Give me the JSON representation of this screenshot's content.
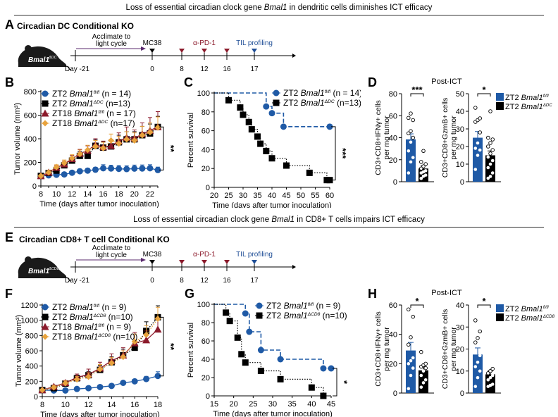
{
  "sections": [
    {
      "banner": {
        "pre": "Loss of essential circadian clock gene ",
        "gene": "Bmal1",
        "post": " in dendritic cells diminishes ICT efficacy"
      },
      "timeline": {
        "panel": "A",
        "title": "Circadian DC Conditional KO",
        "mouse_label": "Bmal1",
        "mouse_sup": "ΔDC",
        "acclimate": [
          "Acclimate to",
          "light cycle"
        ],
        "start_day": "Day -21",
        "events": [
          {
            "day": "0",
            "label": "MC38",
            "color": "#000000"
          },
          {
            "day": "8",
            "label": "",
            "color": "#8b1a2b"
          },
          {
            "day": "12",
            "label": "α-PD-1",
            "color": "#8b1a2b"
          },
          {
            "day": "16",
            "label": "",
            "color": "#8b1a2b"
          },
          {
            "day": "17",
            "label": "TIL profiling",
            "color": "#1f4e96"
          }
        ]
      }
    },
    {
      "banner": {
        "pre": "Loss of essential circadian clock gene ",
        "gene": "Bmal1",
        "post": " in CD8+ T cells impairs ICT efficacy"
      },
      "timeline": {
        "panel": "E",
        "title": "Circadian CD8+ T cell Conditional KO",
        "mouse_label": "Bmal1",
        "mouse_sup": "ΔCD8",
        "acclimate": [
          "Acclimate to",
          "light cycle"
        ],
        "start_day": "Day -21",
        "events": [
          {
            "day": "0",
            "label": "MC38",
            "color": "#000000"
          },
          {
            "day": "8",
            "label": "",
            "color": "#8b1a2b"
          },
          {
            "day": "12",
            "label": "α-PD-1",
            "color": "#8b1a2b"
          },
          {
            "day": "16",
            "label": "",
            "color": "#8b1a2b"
          },
          {
            "day": "17",
            "label": "TIL profiling",
            "color": "#1f4e96"
          }
        ]
      }
    }
  ],
  "colors": {
    "blue": "#1f5aa6",
    "black": "#000000",
    "red": "#8b1a2b",
    "orange": "#e8a33d"
  },
  "chart_data": [
    {
      "panel": "B",
      "type": "line",
      "xlabel": "Time (days after tumor inoculation)",
      "ylabel": "Tumor volume (mm³)",
      "xlim": [
        8,
        23
      ],
      "ylim": [
        0,
        800
      ],
      "xticks": [
        8,
        10,
        12,
        14,
        16,
        18,
        20,
        22
      ],
      "yticks": [
        0,
        200,
        400,
        600,
        800
      ],
      "significance": "**",
      "series": [
        {
          "name": "ZT2 Bmal1fl/fl (n = 14)",
          "prefix": "ZT2 ",
          "gene": "Bmal1",
          "sup": "fl/fl",
          "n": "(n = 14)",
          "marker": "circle",
          "color": "#1f5aa6",
          "dash": "solid",
          "x": [
            8,
            9,
            10,
            11,
            12,
            13,
            14,
            15,
            16,
            17,
            18,
            19,
            20,
            21,
            22,
            23
          ],
          "y": [
            85,
            90,
            95,
            98,
            112,
            125,
            130,
            138,
            150,
            148,
            145,
            143,
            147,
            148,
            150,
            135
          ],
          "err": [
            10,
            10,
            12,
            12,
            15,
            15,
            18,
            20,
            30,
            28,
            28,
            28,
            30,
            30,
            30,
            25
          ]
        },
        {
          "name": "ZT2 Bmal1ΔDC (n=13)",
          "prefix": "ZT2 ",
          "gene": "Bmal1",
          "sup": "ΔDC",
          "n": "(n=13)",
          "marker": "square",
          "color": "#000000",
          "dash": "dotted",
          "x": [
            8,
            9,
            10,
            11,
            12,
            13,
            14,
            15,
            16,
            17,
            18,
            19,
            20,
            21,
            22,
            23
          ],
          "y": [
            85,
            110,
            130,
            175,
            215,
            255,
            255,
            340,
            325,
            335,
            370,
            395,
            395,
            430,
            445,
            500
          ],
          "err": [
            10,
            15,
            20,
            25,
            30,
            35,
            40,
            50,
            50,
            55,
            60,
            65,
            65,
            75,
            80,
            90
          ]
        },
        {
          "name": "ZT18 Bmal1fl/fl (n = 17)",
          "prefix": "ZT18 ",
          "gene": "Bmal1",
          "sup": "fl/fl",
          "n": "(n = 17)",
          "marker": "triangle",
          "color": "#8b1a2b",
          "dash": "solid",
          "x": [
            8,
            9,
            10,
            11,
            12,
            13,
            14,
            15,
            16,
            17,
            18,
            19,
            20,
            21,
            22,
            23
          ],
          "y": [
            85,
            115,
            155,
            185,
            230,
            275,
            300,
            350,
            330,
            340,
            380,
            410,
            405,
            440,
            470,
            500
          ],
          "err": [
            10,
            15,
            20,
            25,
            30,
            35,
            40,
            50,
            50,
            55,
            70,
            90,
            70,
            95,
            110,
            130
          ]
        },
        {
          "name": "ZT18 Bmal1ΔDC (n=17)",
          "prefix": "ZT18 ",
          "gene": "Bmal1",
          "sup": "ΔDC",
          "n": "(n=17)",
          "marker": "diamond",
          "color": "#e8a33d",
          "dash": "dotted",
          "x": [
            8,
            9,
            10,
            11,
            12,
            13,
            14,
            15,
            16,
            17,
            18,
            19,
            20,
            21,
            22,
            23
          ],
          "y": [
            85,
            115,
            160,
            195,
            235,
            270,
            305,
            335,
            320,
            385,
            360,
            395,
            385,
            430,
            455,
            495
          ],
          "err": [
            10,
            15,
            20,
            25,
            30,
            35,
            40,
            50,
            50,
            55,
            60,
            65,
            65,
            75,
            80,
            90
          ]
        }
      ]
    },
    {
      "panel": "C",
      "type": "line",
      "subtype": "survival",
      "xlabel": "Time (days after tumor inoculation)",
      "ylabel": "Percent survival",
      "xlim": [
        20,
        60
      ],
      "ylim": [
        0,
        100
      ],
      "xticks": [
        20,
        25,
        30,
        35,
        40,
        45,
        50,
        55,
        60
      ],
      "yticks": [
        0,
        20,
        40,
        60,
        80,
        100
      ],
      "significance": "***",
      "series": [
        {
          "name": "ZT2 Bmal1fl/fl (n = 14)",
          "prefix": "ZT2 ",
          "gene": "Bmal1",
          "sup": "fl/fl",
          "n": "(n = 14)",
          "marker": "circle",
          "color": "#1f5aa6",
          "dash": "dashed",
          "x": [
            20,
            38,
            40,
            44,
            60
          ],
          "y": [
            100,
            85.7,
            78.6,
            64.3,
            64.3
          ]
        },
        {
          "name": "ZT2 Bmal1ΔDC (n=13)",
          "prefix": "ZT2 ",
          "gene": "Bmal1",
          "sup": "ΔDC",
          "n": "(n=13)",
          "marker": "square",
          "color": "#000000",
          "dash": "dotted",
          "x": [
            20,
            25,
            29,
            30,
            32,
            33,
            35,
            36,
            38,
            40,
            45,
            53,
            59,
            60
          ],
          "y": [
            100,
            92.3,
            84.6,
            76.9,
            69.2,
            61.5,
            53.8,
            46.2,
            38.5,
            30.8,
            23.1,
            15.4,
            7.7,
            7.7
          ]
        }
      ]
    },
    {
      "panel": "D",
      "type": "bar",
      "title": "Post-ICT",
      "legend": [
        {
          "prefix": "ZT2 ",
          "gene": "Bmal1",
          "sup": "fl/fl",
          "color": "#1f5aa6"
        },
        {
          "prefix": "ZT2 ",
          "gene": "Bmal1",
          "sup": "ΔDC",
          "color": "#000000"
        }
      ],
      "subplots": [
        {
          "ylabel": [
            "CD3+CD8+IFNγ+ cells",
            "per mg tumor"
          ],
          "ylim": [
            0,
            80
          ],
          "yticks": [
            0,
            20,
            40,
            60,
            80
          ],
          "significance": "***",
          "values": [
            38.5,
            12
          ],
          "err": [
            5,
            2.5
          ],
          "points": [
            [
              8,
              18,
              22,
              28,
              36,
              40,
              44,
              46,
              56,
              58,
              62
            ],
            [
              3,
              5,
              6,
              8,
              9,
              10,
              12,
              14,
              16,
              18,
              28
            ]
          ]
        },
        {
          "ylabel": [
            "CD3+CD8+GzmB+ cells",
            "per mg tumor"
          ],
          "ylim": [
            0,
            50
          ],
          "yticks": [
            0,
            10,
            20,
            30,
            40,
            50
          ],
          "significance": "*",
          "values": [
            25,
            15
          ],
          "err": [
            3.5,
            2.5
          ],
          "points": [
            [
              7,
              15,
              18,
              19,
              22,
              28,
              34,
              35,
              36,
              42
            ],
            [
              2,
              3,
              5,
              8,
              10,
              12,
              14,
              16,
              18,
              20,
              22,
              24,
              25,
              40
            ]
          ]
        }
      ]
    },
    {
      "panel": "F",
      "type": "line",
      "xlabel": "Time (days after tumor inoculation)",
      "ylabel": "Tumor volume (mm³)",
      "xlim": [
        8,
        18
      ],
      "ylim": [
        0,
        1200
      ],
      "xticks": [
        8,
        10,
        12,
        14,
        16,
        18
      ],
      "yticks": [
        0,
        200,
        400,
        600,
        800,
        1000,
        1200
      ],
      "significance": "**",
      "series": [
        {
          "name": "ZT2 Bmal1fl/fl (n = 9)",
          "prefix": "ZT2 ",
          "gene": "Bmal1",
          "sup": "fl/fl",
          "n": "(n = 9)",
          "marker": "circle",
          "color": "#1f5aa6",
          "dash": "solid",
          "x": [
            8,
            9,
            10,
            11,
            12,
            13,
            14,
            15,
            16,
            17,
            18
          ],
          "y": [
            85,
            80,
            80,
            100,
            110,
            125,
            140,
            180,
            200,
            230,
            270
          ],
          "err": [
            8,
            8,
            8,
            10,
            10,
            12,
            15,
            20,
            25,
            35,
            55
          ]
        },
        {
          "name": "ZT2 Bmal1ΔCD8 (n=10)",
          "prefix": "ZT2 ",
          "gene": "Bmal1",
          "sup": "ΔCD8",
          "n": "(n=10)",
          "marker": "square",
          "color": "#000000",
          "dash": "dotted",
          "x": [
            8,
            9,
            10,
            11,
            12,
            13,
            14,
            15,
            16,
            17,
            18
          ],
          "y": [
            85,
            110,
            170,
            240,
            280,
            350,
            450,
            540,
            640,
            860,
            1040
          ],
          "err": [
            10,
            20,
            30,
            40,
            50,
            60,
            70,
            80,
            100,
            120,
            150
          ]
        },
        {
          "name": "ZT18 Bmal1fl/fl (n = 9)",
          "prefix": "ZT18 ",
          "gene": "Bmal1",
          "sup": "fl/fl",
          "n": "(n = 9)",
          "marker": "triangle",
          "color": "#8b1a2b",
          "dash": "solid",
          "x": [
            8,
            9,
            10,
            11,
            12,
            13,
            14,
            15,
            16,
            17,
            18
          ],
          "y": [
            85,
            130,
            180,
            250,
            290,
            370,
            470,
            540,
            700,
            740,
            880
          ],
          "err": [
            10,
            20,
            30,
            45,
            70,
            80,
            90,
            100,
            140,
            120,
            130
          ]
        },
        {
          "name": "ZT18 Bmal1ΔCD8 (n=10)",
          "prefix": "ZT18 ",
          "gene": "Bmal1",
          "sup": "ΔCD8",
          "n": "(n=10)",
          "marker": "diamond",
          "color": "#e8a33d",
          "dash": "dotted",
          "x": [
            8,
            9,
            10,
            11,
            12,
            13,
            14,
            15,
            16,
            17,
            18
          ],
          "y": [
            85,
            120,
            175,
            225,
            260,
            360,
            440,
            520,
            720,
            810,
            1020
          ],
          "err": [
            10,
            20,
            30,
            40,
            50,
            60,
            70,
            80,
            100,
            120,
            150
          ]
        }
      ]
    },
    {
      "panel": "G",
      "type": "line",
      "subtype": "survival",
      "xlabel": "Time (days after tumor inoculation)",
      "ylabel": "Percent survival",
      "xlim": [
        15,
        45
      ],
      "ylim": [
        0,
        100
      ],
      "xticks": [
        15,
        20,
        25,
        30,
        35,
        40,
        45
      ],
      "yticks": [
        0,
        20,
        40,
        60,
        80,
        100
      ],
      "significance": "*",
      "series": [
        {
          "name": "ZT2 Bmal1fl/fl (n = 9)",
          "prefix": "ZT2 ",
          "gene": "Bmal1",
          "sup": "fl/fl",
          "n": "(n = 9)",
          "marker": "circle",
          "color": "#1f5aa6",
          "dash": "dashed",
          "x": [
            15,
            23,
            24,
            27,
            32,
            43,
            45
          ],
          "y": [
            100,
            90,
            70,
            50,
            40,
            30,
            30
          ]
        },
        {
          "name": "ZT2 Bmal1ΔCD8 (n=10)",
          "prefix": "ZT2 ",
          "gene": "Bmal1",
          "sup": "ΔCD8",
          "n": "(n=10)",
          "marker": "square",
          "color": "#000000",
          "dash": "dotted",
          "x": [
            15,
            18,
            19,
            21,
            22,
            23,
            27,
            32,
            40,
            43
          ],
          "y": [
            100,
            90.9,
            81.8,
            63.6,
            45.5,
            36.4,
            27.3,
            18.2,
            9.1,
            0
          ]
        }
      ]
    },
    {
      "panel": "H",
      "type": "bar",
      "title": "Post-ICT",
      "legend": [
        {
          "prefix": "ZT2 ",
          "gene": "Bmal1",
          "sup": "fl/fl",
          "color": "#1f5aa6"
        },
        {
          "prefix": "ZT2 ",
          "gene": "Bmal1",
          "sup": "ΔCD8",
          "color": "#000000"
        }
      ],
      "subplots": [
        {
          "ylabel": [
            "CD3+CD8+IFNγ+ cells",
            "per mg tumor"
          ],
          "ylim": [
            0,
            60
          ],
          "yticks": [
            0,
            20,
            40,
            60
          ],
          "significance": "*",
          "values": [
            29,
            15.5
          ],
          "err": [
            5.5,
            2.5
          ],
          "points": [
            [
              3,
              12,
              17,
              20,
              22,
              24,
              33,
              38,
              52,
              57
            ],
            [
              4,
              7,
              9,
              12,
              15,
              17,
              18,
              19,
              20,
              28
            ]
          ]
        },
        {
          "ylabel": [
            "CD3+CD8+GzmB+ cells",
            "per mg tumor"
          ],
          "ylim": [
            0,
            40
          ],
          "yticks": [
            0,
            10,
            20,
            30,
            40
          ],
          "significance": "*",
          "values": [
            17.5,
            8.5
          ],
          "err": [
            3,
            1.5
          ],
          "points": [
            [
              3,
              7,
              10,
              12,
              14,
              17,
              23,
              25,
              28,
              33
            ],
            [
              3,
              3.5,
              4,
              6,
              7,
              8,
              9,
              10,
              11
            ]
          ]
        }
      ]
    }
  ]
}
